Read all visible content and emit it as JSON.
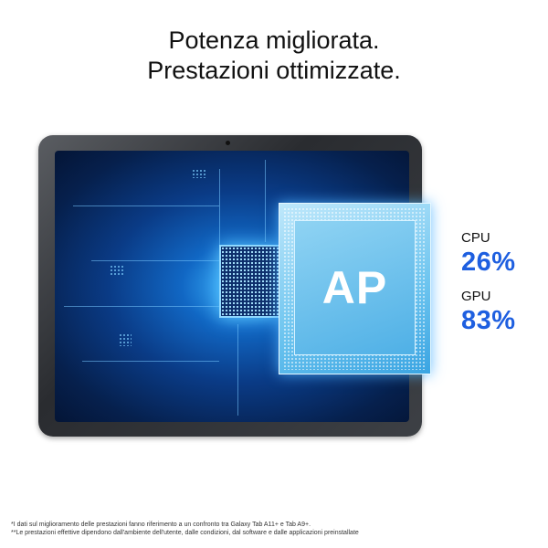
{
  "headline": {
    "line1": "Potenza migliorata.",
    "line2": "Prestazioni ottimizzate."
  },
  "chip": {
    "label": "AP"
  },
  "stats": [
    {
      "label": "CPU",
      "value": "26%"
    },
    {
      "label": "GPU",
      "value": "83%"
    }
  ],
  "colors": {
    "accent": "#1e5fe0",
    "screen": "#0a3b86"
  },
  "footnotes": [
    "*I dati sul miglioramento delle prestazioni fanno riferimento a un confronto tra Galaxy Tab A11+ e Tab A9+.",
    "**Le prestazioni effettive dipendono dall'ambiente dell'utente, dalle condizioni, dal software e dalle applicazioni preinstallate"
  ]
}
